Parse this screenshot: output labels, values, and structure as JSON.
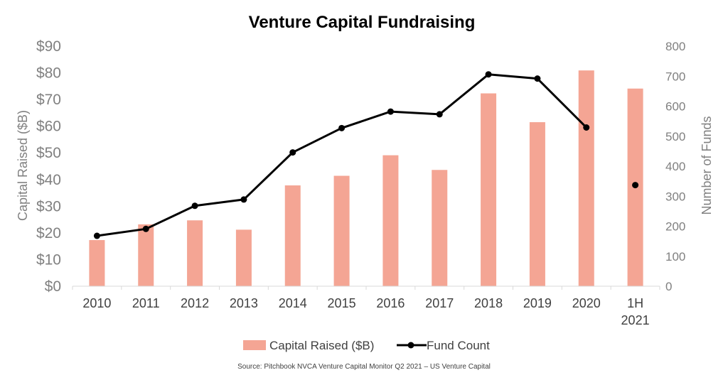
{
  "chart_data": {
    "type": "bar",
    "title": "Venture Capital Fundraising",
    "categories": [
      "2010",
      "2011",
      "2012",
      "2013",
      "2014",
      "2015",
      "2016",
      "2017",
      "2018",
      "2019",
      "2020",
      "1H 2021"
    ],
    "series": [
      {
        "name": "Capital Raised ($B)",
        "type": "bar",
        "axis": "left",
        "color": "#F4A594",
        "values": [
          17.3,
          23.2,
          24.7,
          21.2,
          37.8,
          41.4,
          49.1,
          43.6,
          72.3,
          61.5,
          80.9,
          74.1
        ]
      },
      {
        "name": "Fund Count",
        "type": "line",
        "axis": "right",
        "color": "#000000",
        "values": [
          168,
          191,
          268,
          289,
          446,
          527,
          582,
          573,
          706,
          692,
          529,
          337
        ],
        "connect_last": false
      }
    ],
    "ylabel": "Capital Raised ($B)",
    "ylim": [
      0,
      90
    ],
    "yticks": [
      "$0",
      "$10",
      "$20",
      "$30",
      "$40",
      "$50",
      "$60",
      "$70",
      "$80",
      "$90"
    ],
    "y2label": "Number of Funds",
    "y2lim": [
      0,
      800
    ],
    "y2ticks": [
      "0",
      "100",
      "200",
      "300",
      "400",
      "500",
      "600",
      "700",
      "800"
    ],
    "grid": false,
    "legend_position": "bottom",
    "source": "Source: Pitchbook NVCA Venture Capital Monitor Q2 2021 – US Venture Capital"
  }
}
